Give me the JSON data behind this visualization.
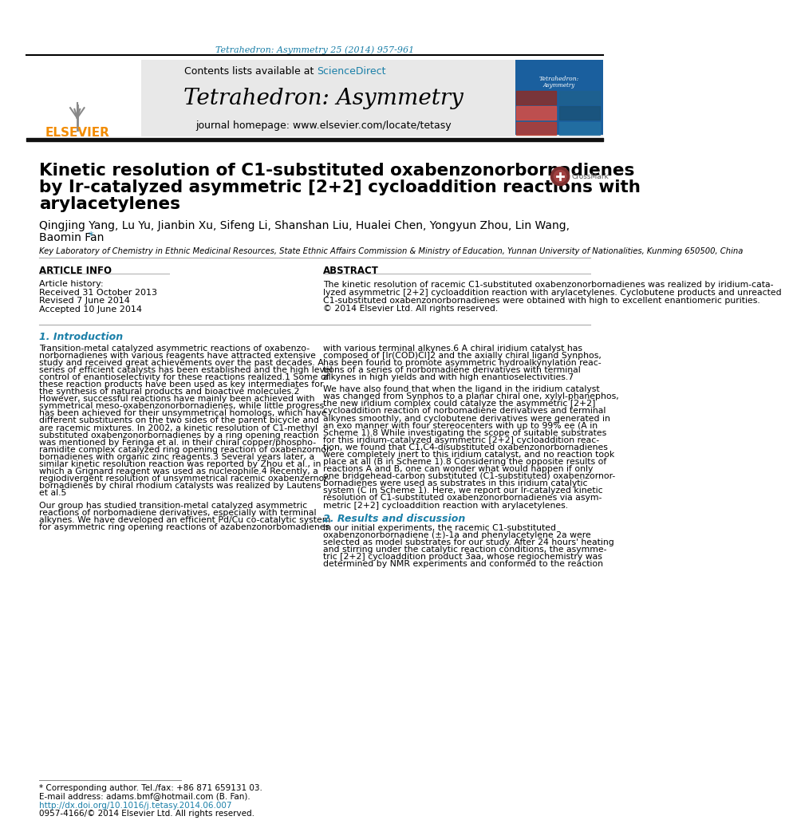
{
  "journal_ref": "Tetrahedron: Asymmetry 25 (2014) 957-961",
  "journal_ref_color": "#1a7fa8",
  "header_bg": "#e8e8e8",
  "contents_line": "Contents lists available at ScienceDirect",
  "sciencedirect_color": "#1a7fa8",
  "journal_title": "Tetrahedron: Asymmetry",
  "homepage_line": "journal homepage: www.elsevier.com/locate/tetasy",
  "elsevier_color": "#f28c00",
  "article_title_line1": "Kinetic resolution of C1-substituted oxabenzonorbornadienes",
  "article_title_line2": "by Ir-catalyzed asymmetric [2+2] cycloaddition reactions with",
  "article_title_line3": "arylacetylenes",
  "authors": "Qingjing Yang, Lu Yu, Jianbin Xu, Sifeng Li, Shanshan Liu, Hualei Chen, Yongyun Zhou, Lin Wang,",
  "authors_line2": "Baomin Fan*",
  "affiliation": "Key Laboratory of Chemistry in Ethnic Medicinal Resources, State Ethnic Affairs Commission & Ministry of Education, Yunnan University of Nationalities, Kunming 650500, China",
  "article_info_title": "ARTICLE INFO",
  "article_history_title": "Article history:",
  "received": "Received 31 October 2013",
  "revised": "Revised 7 June 2014",
  "accepted": "Accepted 10 June 2014",
  "abstract_title": "ABSTRACT",
  "intro_title": "1. Introduction",
  "results_title": "2. Results and discussion",
  "footnote_star": "* Corresponding author. Tel./fax: +86 871 659131 03.",
  "footnote_email": "E-mail address: adams.bmf@hotmail.com (B. Fan).",
  "doi": "http://dx.doi.org/10.1016/j.tetasy.2014.06.007",
  "copyright": "0957-4166/© 2014 Elsevier Ltd. All rights reserved.",
  "bg_color": "#ffffff",
  "text_color": "#000000",
  "header_color": "#e8e8e8",
  "intro_lines_col1": [
    "Transition-metal catalyzed asymmetric reactions of oxabenzo-",
    "norbornadienes with various reagents have attracted extensive",
    "study and received great achievements over the past decades. A",
    "series of efficient catalysts has been established and the high level",
    "control of enantioselectivity for these reactions realized.1 Some of",
    "these reaction products have been used as key intermediates for",
    "the synthesis of natural products and bioactive molecules.2",
    "However, successful reactions have mainly been achieved with",
    "symmetrical meso-oxabenzonorbornadienes, while little progress",
    "has been achieved for their unsymmetrical homologs, which have",
    "different substituents on the two sides of the parent bicycle and",
    "are racemic mixtures. In 2002, a kinetic resolution of C1-methyl",
    "substituted oxabenzonorbornadienes by a ring opening reaction",
    "was mentioned by Feringa et al. in their chiral copper/phospho-",
    "ramidite complex catalyzed ring opening reaction of oxabenzornor-",
    "bornadienes with organic zinc reagents.3 Several years later, a",
    "similar kinetic resolution reaction was reported by Zhou et al., in",
    "which a Grignard reagent was used as nucleophile.4 Recently, a",
    "regiodivergent resolution of unsymmetrical racemic oxabenzernor-",
    "bornadienes by chiral rhodium catalysts was realized by Lautens",
    "et al.5"
  ],
  "intro_lines_col1_para2": [
    "Our group has studied transition-metal catalyzed asymmetric",
    "reactions of norbomadiene derivatives, especially with terminal",
    "alkynes. We have developed an efficient Pd/Cu co-catalytic system",
    "for asymmetric ring opening reactions of azabenzonorbomadienes"
  ],
  "right_col_lines1": [
    "with various terminal alkynes.6 A chiral iridium catalyst has",
    "composed of [Ir(COD)Cl]2 and the axially chiral ligand Synphos,",
    "has been found to promote asymmetric hydroalkynylation reac-",
    "tions of a series of norbomadiene derivatives with terminal",
    "alkynes in high yields and with high enantioselectivities.7"
  ],
  "right_col_lines2": [
    "We have also found that when the ligand in the iridium catalyst",
    "was changed from Synphos to a planar chiral one, xylyl-phanephos,",
    "the new iridium complex could catalyze the asymmetric [2+2]",
    "cycloaddition reaction of norbomadiene derivatives and terminal",
    "alkynes smoothly, and cyclobutene derivatives were generated in",
    "an exo manner with four stereocenters with up to 99% ee (A in",
    "Scheme 1).8 While investigating the scope of suitable substrates",
    "for this iridium-catalyzed asymmetric [2+2] cycloaddition reac-",
    "tion, we found that C1,C4-disubstituted oxabenzonorbornadienes",
    "were completely inert to this iridium catalyst, and no reaction took",
    "place at all (B in Scheme 1).8 Considering the opposite results of",
    "reactions A and B, one can wonder what would happen if only",
    "one bridgehead-carbon substituted (C1-substituted) oxabenzornor-",
    "bornadienes were used as substrates in this iridium catalytic",
    "system (C in Scheme 1). Here, we report our Ir-catalyzed kinetic",
    "resolution of C1-substituted oxabenzonorbornadienes via asym-",
    "metric [2+2] cycloaddition reaction with arylacetylenes."
  ],
  "results_lines": [
    "In our initial experiments, the racemic C1-substituted",
    "oxabenzonorbornadiene (±)-1a and phenylacetylene 2a were",
    "selected as model substrates for our study. After 24 hours' heating",
    "and stirring under the catalytic reaction conditions, the asymme-",
    "tric [2+2] cycloaddition product 3aa, whose regiochemistry was",
    "determined by NMR experiments and conformed to the reaction"
  ],
  "abstract_lines": [
    "The kinetic resolution of racemic C1-substituted oxabenzonorbornadienes was realized by iridium-cata-",
    "lyzed asymmetric [2+2] cycloaddition reaction with arylacetylenes. Cyclobutene products and unreacted",
    "C1-substituted oxabenzonorbornadienes were obtained with high to excellent enantiomeric purities.",
    "© 2014 Elsevier Ltd. All rights reserved."
  ]
}
